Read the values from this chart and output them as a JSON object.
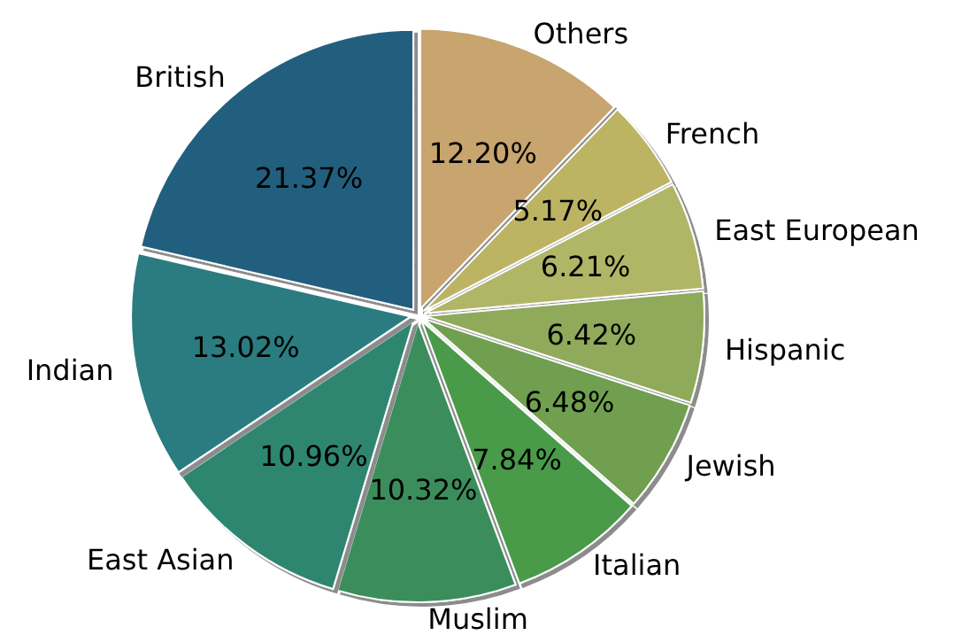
{
  "chart_data": {
    "type": "pie",
    "categories": [
      "Others",
      "French",
      "East European",
      "Hispanic",
      "Jewish",
      "Italian",
      "Muslim",
      "East Asian",
      "Indian",
      "British"
    ],
    "values": [
      12.2,
      5.17,
      6.21,
      6.42,
      6.48,
      7.84,
      10.32,
      10.96,
      13.02,
      21.37
    ],
    "value_labels": [
      "12.20%",
      "5.17%",
      "6.21%",
      "6.42%",
      "6.48%",
      "7.84%",
      "10.32%",
      "10.96%",
      "13.02%",
      "21.37%"
    ],
    "colors": [
      "#c8a46e",
      "#bcb462",
      "#b0b666",
      "#8faa5a",
      "#6fa050",
      "#4a9a48",
      "#3a8e5c",
      "#2f8670",
      "#2a7b80",
      "#245e7e"
    ]
  }
}
